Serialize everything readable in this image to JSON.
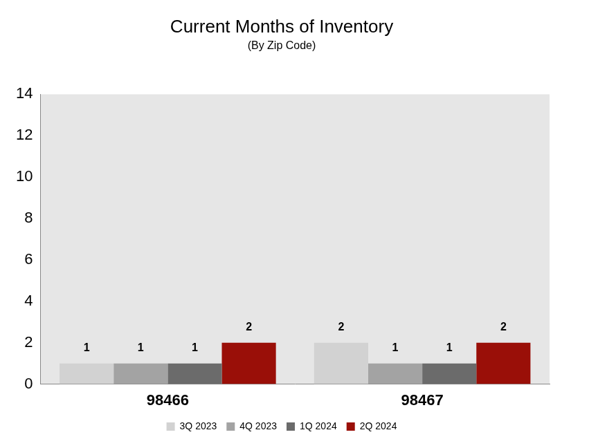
{
  "chart_data": {
    "type": "bar",
    "title": "Current Months of Inventory",
    "subtitle": "(By Zip Code)",
    "categories": [
      "98466",
      "98467"
    ],
    "series": [
      {
        "name": "3Q 2023",
        "color": "#d2d2d2",
        "values": [
          1,
          2
        ]
      },
      {
        "name": "4Q 2023",
        "color": "#a3a3a3",
        "values": [
          1,
          1
        ]
      },
      {
        "name": "1Q 2024",
        "color": "#6b6b6b",
        "values": [
          1,
          1
        ]
      },
      {
        "name": "2Q 2024",
        "color": "#9a0f08",
        "values": [
          2,
          2
        ]
      }
    ],
    "ylim": [
      0,
      14
    ],
    "yticks": [
      0,
      2,
      4,
      6,
      8,
      10,
      12,
      14
    ],
    "grid": false,
    "legend": "bottom",
    "data_labels": true
  }
}
